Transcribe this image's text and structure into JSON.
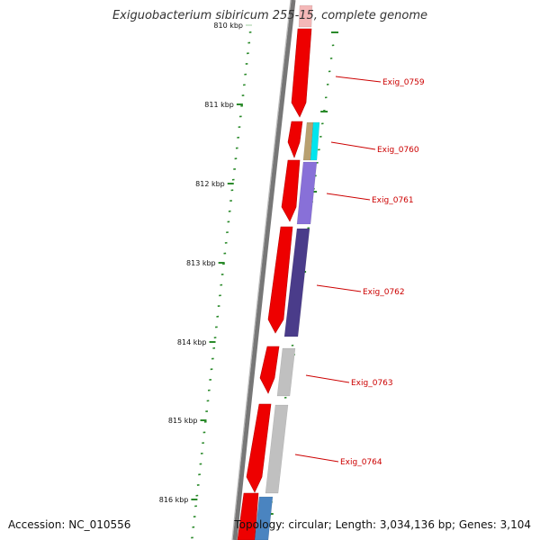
{
  "title": "Exiguobacterium sibiricum 255-15, complete genome",
  "footer": {
    "accession": "Accession: NC_010556",
    "summary": "Topology: circular; Length: 3,034,136 bp; Genes: 3,104"
  },
  "scale_labels": [
    "810 kbp",
    "811 kbp",
    "812 kbp",
    "813 kbp",
    "814 kbp",
    "815 kbp",
    "816 kbp"
  ],
  "gene_labels": [
    "Exig_0759",
    "Exig_0760",
    "Exig_0761",
    "Exig_0762",
    "Exig_0763",
    "Exig_0764"
  ],
  "colors": {
    "backbone": "#777777",
    "cds": "#ee0000",
    "tick": "#2a8a2a",
    "label": "#cc0000",
    "cyan": "#00e5ee",
    "tan": "#b8a070",
    "lavender": "#8870d8",
    "indigo": "#4a3c8a",
    "gray": "#c0c0c0",
    "blue": "#4a84c0",
    "pink": "#f4b8b8"
  }
}
